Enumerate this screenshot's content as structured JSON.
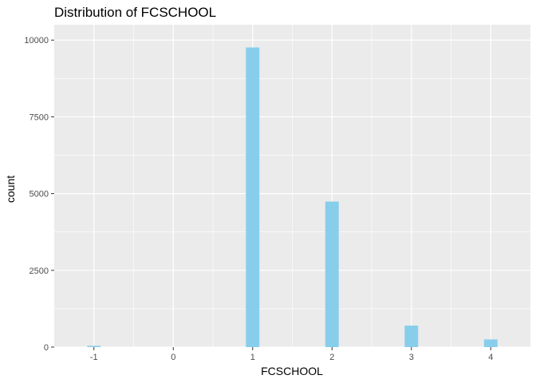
{
  "chart_data": {
    "type": "bar",
    "title": "Distribution of FCSCHOOL",
    "xlabel": "FCSCHOOL",
    "ylabel": "count",
    "x": [
      -1,
      1,
      2,
      3,
      4
    ],
    "values": [
      40,
      9760,
      4740,
      700,
      250
    ],
    "xlim": [
      -1.5,
      4.5
    ],
    "ylim": [
      0,
      10500
    ],
    "xticks": [
      -1,
      0,
      1,
      2,
      3,
      4
    ],
    "xtick_labels": [
      "-1",
      "0",
      "1",
      "2",
      "3",
      "4"
    ],
    "yticks": [
      0,
      2500,
      5000,
      7500,
      10000
    ],
    "ytick_labels": [
      "0",
      "2500",
      "5000",
      "7500",
      "10000"
    ],
    "grid": true,
    "legend": "none",
    "colors": {
      "bar": "#87CEEB",
      "panel": "#EBEBEB",
      "grid": "#FFFFFF",
      "tick_text": "#4D4D4D",
      "tick_mark": "#333333"
    }
  }
}
